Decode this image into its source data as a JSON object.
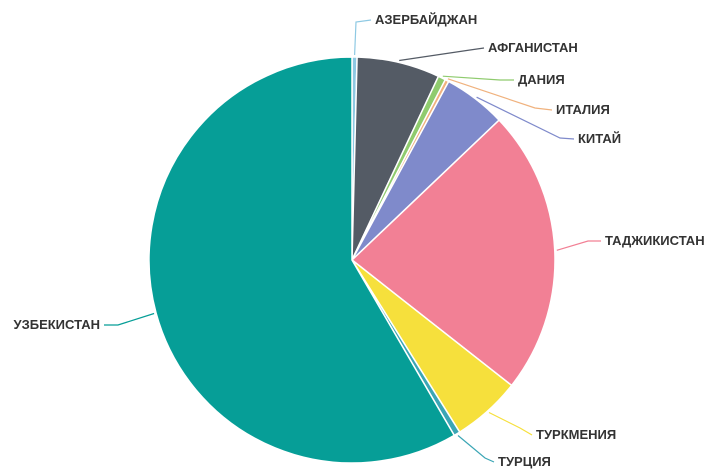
{
  "chart_data": {
    "type": "pie",
    "title": "",
    "slices": [
      {
        "label": "АЗЕРБАЙДЖАН",
        "value": 0.4,
        "color": "#8EC9E3"
      },
      {
        "label": "АФГАНИСТАН",
        "value": 6.6,
        "color": "#545B65"
      },
      {
        "label": "ДАНИЯ",
        "value": 0.6,
        "color": "#8FCB6E"
      },
      {
        "label": "ИТАЛИЯ",
        "value": 0.3,
        "color": "#F0B27E"
      },
      {
        "label": "КИТАЙ",
        "value": 5.0,
        "color": "#7F8ACB"
      },
      {
        "label": "ТАДЖИКИСТАН",
        "value": 22.7,
        "color": "#F28095"
      },
      {
        "label": "ТУРКМЕНИЯ",
        "value": 5.5,
        "color": "#F6E03C"
      },
      {
        "label": "ТУРЦИЯ",
        "value": 0.5,
        "color": "#3BA6B5"
      },
      {
        "label": "УЗБЕКИСТАН",
        "value": 58.4,
        "color": "#069E97"
      }
    ]
  }
}
